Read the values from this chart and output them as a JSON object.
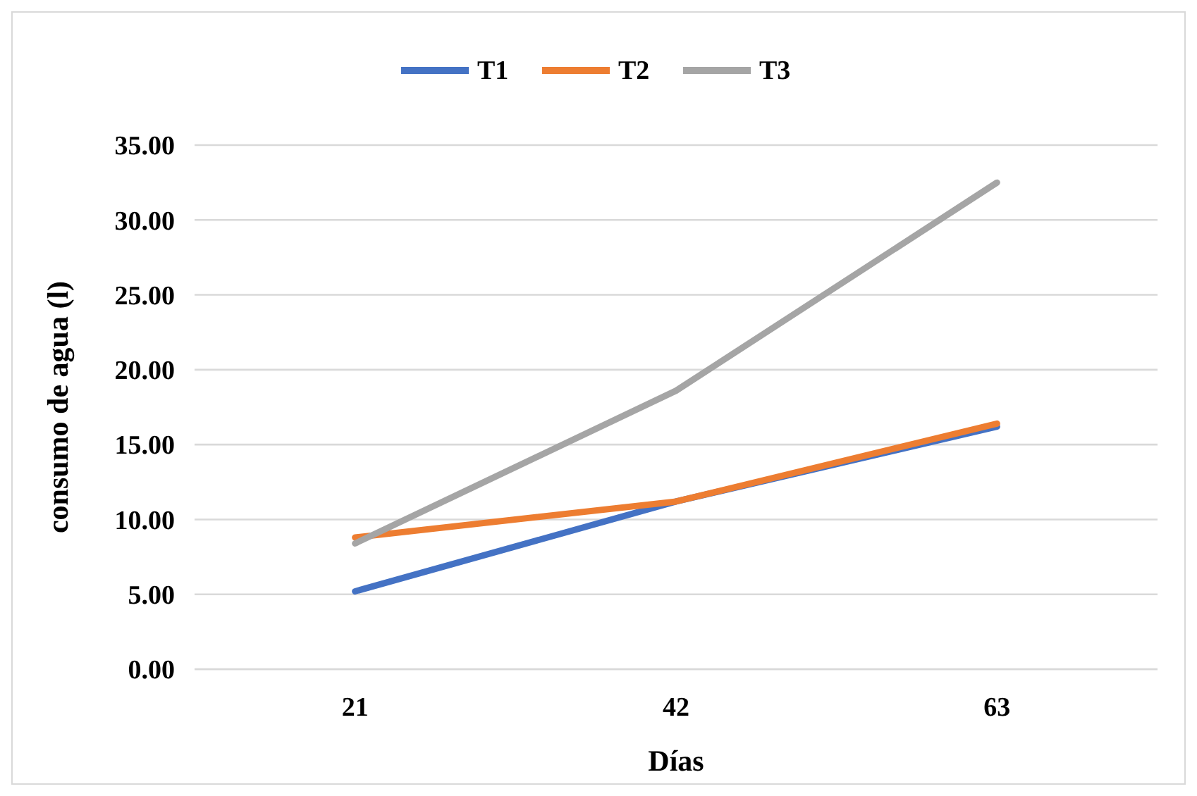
{
  "chart_data": {
    "type": "line",
    "xlabel": "Días",
    "ylabel": "consumo de agua (l)",
    "categories": [
      "21",
      "42",
      "63"
    ],
    "series": [
      {
        "name": "T1",
        "color": "#4472c4",
        "values": [
          5.2,
          11.2,
          16.2
        ]
      },
      {
        "name": "T2",
        "color": "#ed7d31",
        "values": [
          8.8,
          11.2,
          16.4
        ]
      },
      {
        "name": "T3",
        "color": "#a5a5a5",
        "values": [
          8.4,
          18.6,
          32.5
        ]
      }
    ],
    "ylim": [
      0,
      35
    ],
    "yticks": [
      {
        "value": 0,
        "label": "0.00"
      },
      {
        "value": 5,
        "label": "5.00"
      },
      {
        "value": 10,
        "label": "10.00"
      },
      {
        "value": 15,
        "label": "15.00"
      },
      {
        "value": 20,
        "label": "20.00"
      },
      {
        "value": 25,
        "label": "25.00"
      },
      {
        "value": 30,
        "label": "30.00"
      },
      {
        "value": 35,
        "label": "35.00"
      }
    ],
    "grid": "y",
    "legend": "top",
    "marker": "none",
    "line_style": "solid"
  }
}
